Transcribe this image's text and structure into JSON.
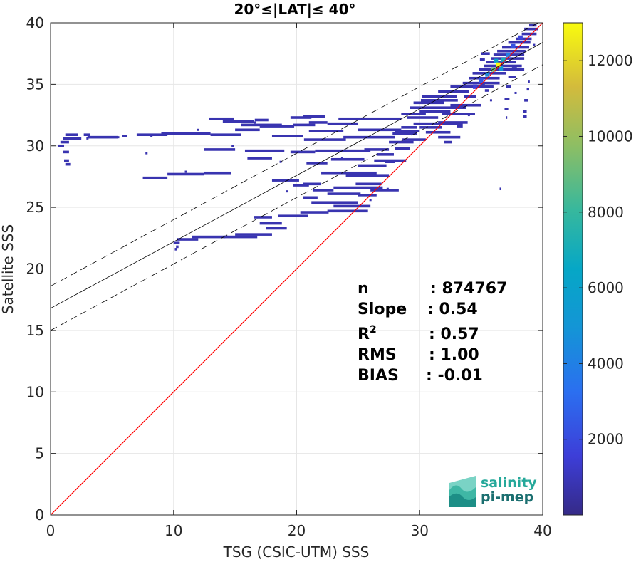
{
  "chart_data": {
    "type": "heatmap",
    "title": "20°≤|LAT|≤ 40°",
    "xlabel": "TSG (CSIC-UTM) SSS",
    "ylabel": "Satellite SSS",
    "xlim": [
      0,
      40
    ],
    "ylim": [
      0,
      40
    ],
    "xticks": [
      "0",
      "10",
      "20",
      "30",
      "40"
    ],
    "yticks": [
      "0",
      "5",
      "10",
      "15",
      "20",
      "25",
      "30",
      "35",
      "40"
    ],
    "grid": true,
    "colorbar": {
      "min": 1,
      "max": 13000,
      "ticks": [
        "2000",
        "4000",
        "6000",
        "8000",
        "10000",
        "12000"
      ],
      "colormap": "parula"
    },
    "lines": {
      "identity": {
        "slope": 1,
        "intercept": 0,
        "color": "#ff0000"
      },
      "fit": {
        "slope": 0.54,
        "intercept": 16.8,
        "color": "#000000"
      },
      "upper_bound": {
        "slope": 0.54,
        "intercept": 18.6,
        "style": "dashed"
      },
      "lower_bound": {
        "slope": 0.54,
        "intercept": 15.0,
        "style": "dashed"
      }
    },
    "stats": [
      {
        "label": "n",
        "value": ": 874767"
      },
      {
        "label": "Slope",
        "value": ": 0.54"
      },
      {
        "label": "R",
        "sup": "2",
        "value": ": 0.57"
      },
      {
        "label": "RMS",
        "value": ": 1.00"
      },
      {
        "label": "BIAS",
        "value": ": -0.01"
      }
    ],
    "density_segments": [
      [
        1.2,
        30.9,
        2.2
      ],
      [
        1.0,
        30.6,
        2.5
      ],
      [
        0.8,
        30.3,
        1.5
      ],
      [
        0.6,
        30.0,
        1.1
      ],
      [
        1.0,
        29.5,
        1.5
      ],
      [
        1.1,
        28.8,
        1.5
      ],
      [
        1.2,
        28.5,
        1.6
      ],
      [
        2.7,
        30.9,
        3.2
      ],
      [
        3.0,
        30.7,
        5.5
      ],
      [
        5.8,
        30.8,
        6.2
      ],
      [
        7.0,
        30.9,
        9.5
      ],
      [
        9.0,
        31.0,
        13.0
      ],
      [
        13.0,
        30.9,
        15.5
      ],
      [
        15.0,
        31.3,
        17.0
      ],
      [
        15.5,
        31.7,
        18.8
      ],
      [
        17.0,
        31.6,
        19.8
      ],
      [
        19.7,
        31.7,
        21.5
      ],
      [
        21.0,
        31.9,
        22.5
      ],
      [
        22.5,
        31.8,
        25.0
      ],
      [
        14.0,
        32.0,
        16.5
      ],
      [
        12.9,
        32.2,
        14.9
      ],
      [
        16.6,
        32.1,
        17.7
      ],
      [
        19.5,
        32.3,
        21.2
      ],
      [
        20.5,
        32.4,
        22.3
      ],
      [
        23.4,
        32.2,
        28.5
      ],
      [
        18.0,
        30.8,
        20.5
      ],
      [
        20.6,
        30.5,
        24.0
      ],
      [
        23.8,
        30.7,
        28.0
      ],
      [
        21.0,
        31.2,
        23.8
      ],
      [
        25.0,
        31.3,
        28.5
      ],
      [
        12.5,
        29.7,
        15.0
      ],
      [
        15.8,
        29.6,
        19.0
      ],
      [
        19.5,
        29.5,
        21.5
      ],
      [
        21.5,
        29.6,
        26.0
      ],
      [
        25.5,
        29.7,
        27.5
      ],
      [
        16.0,
        29.0,
        18.0
      ],
      [
        20.8,
        28.6,
        22.5
      ],
      [
        22.8,
        28.9,
        25.5
      ],
      [
        25.0,
        28.4,
        27.3
      ],
      [
        26.3,
        28.8,
        28.9
      ],
      [
        22.0,
        27.8,
        26.5
      ],
      [
        24.0,
        27.6,
        27.5
      ],
      [
        9.5,
        27.7,
        12.5
      ],
      [
        12.5,
        27.8,
        14.7
      ],
      [
        7.5,
        27.4,
        9.5
      ],
      [
        18.0,
        27.2,
        20.2
      ],
      [
        20.5,
        26.9,
        22.0
      ],
      [
        21.3,
        26.4,
        23.0
      ],
      [
        23.0,
        26.6,
        27.0
      ],
      [
        24.8,
        26.9,
        26.9
      ],
      [
        26.0,
        26.4,
        28.3
      ],
      [
        22.5,
        26.1,
        25.2
      ],
      [
        25.0,
        26.0,
        26.5
      ],
      [
        19.7,
        26.8,
        21.0
      ],
      [
        20.5,
        25.8,
        21.7
      ],
      [
        21.2,
        25.4,
        25.0
      ],
      [
        22.5,
        24.7,
        25.8
      ],
      [
        23.0,
        25.1,
        26.0
      ],
      [
        20.3,
        24.6,
        22.6
      ],
      [
        18.5,
        24.3,
        20.9
      ],
      [
        16.5,
        24.2,
        18.0
      ],
      [
        17.0,
        23.7,
        18.8
      ],
      [
        17.5,
        23.3,
        19.2
      ],
      [
        15.0,
        22.8,
        18.0
      ],
      [
        14.1,
        22.6,
        16.8
      ],
      [
        11.5,
        22.6,
        14.2
      ],
      [
        10.3,
        22.4,
        12.0
      ],
      [
        10.0,
        22.1,
        10.5
      ],
      [
        10.2,
        21.8,
        10.4
      ],
      [
        10.1,
        21.6,
        10.3
      ],
      [
        28.5,
        31.5,
        29.8
      ],
      [
        28.0,
        31.2,
        30.0
      ],
      [
        27.8,
        31.0,
        29.8
      ],
      [
        28.6,
        30.5,
        30.5
      ],
      [
        27.5,
        30.3,
        29.5
      ],
      [
        28.0,
        29.8,
        29.2
      ],
      [
        26.5,
        29.3,
        27.9
      ],
      [
        27.2,
        28.7,
        28.0
      ],
      [
        29.0,
        32.3,
        31.5
      ],
      [
        28.5,
        32.6,
        30.5
      ],
      [
        29.5,
        31.8,
        33.5
      ],
      [
        30.0,
        31.5,
        31.8
      ],
      [
        31.5,
        31.9,
        33.9
      ],
      [
        30.5,
        31.1,
        32.5
      ],
      [
        31.5,
        30.7,
        33.3
      ],
      [
        32.0,
        30.3,
        32.6
      ],
      [
        33.0,
        31.6,
        33.5
      ],
      [
        30.0,
        32.8,
        32.5
      ],
      [
        29.2,
        33.1,
        33.8
      ],
      [
        29.5,
        33.5,
        32.0
      ],
      [
        30.1,
        33.7,
        33.1
      ],
      [
        30.2,
        34.0,
        33.0
      ],
      [
        31.5,
        34.4,
        34.0
      ],
      [
        32.5,
        34.8,
        36.0
      ],
      [
        33.5,
        35.1,
        36.5
      ],
      [
        34.0,
        35.5,
        36.5
      ],
      [
        34.3,
        35.9,
        37.0
      ],
      [
        34.8,
        36.2,
        38.5
      ],
      [
        35.2,
        36.5,
        38.3
      ],
      [
        35.4,
        36.8,
        37.8
      ],
      [
        35.8,
        37.1,
        38.5
      ],
      [
        36.0,
        37.4,
        38.5
      ],
      [
        36.3,
        37.7,
        38.6
      ],
      [
        36.7,
        38.0,
        38.9
      ],
      [
        37.2,
        38.4,
        39.0
      ],
      [
        37.8,
        38.7,
        39.1
      ],
      [
        38.3,
        39.1,
        39.5
      ],
      [
        38.5,
        39.5,
        39.6
      ],
      [
        38.9,
        39.8,
        39.5
      ],
      [
        37.5,
        36.3,
        37.9
      ],
      [
        37.2,
        35.6,
        37.8
      ],
      [
        37.0,
        34.8,
        37.4
      ],
      [
        36.9,
        33.8,
        37.3
      ],
      [
        36.9,
        33.0,
        37.2
      ],
      [
        37.0,
        32.3,
        37.1
      ],
      [
        35.0,
        35.0,
        35.3
      ],
      [
        35.3,
        34.5,
        35.6
      ],
      [
        38.8,
        35.2,
        38.95
      ],
      [
        38.7,
        34.6,
        38.9
      ],
      [
        38.5,
        33.7,
        38.8
      ],
      [
        38.4,
        32.8,
        38.7
      ],
      [
        38.4,
        32.4,
        38.7
      ],
      [
        31.8,
        32.6,
        34.5
      ],
      [
        32.5,
        33.3,
        35.0
      ],
      [
        35.0,
        37.5,
        35.7
      ],
      [
        34.9,
        37.0,
        35.3
      ],
      [
        33.6,
        34.0,
        34.6
      ],
      [
        36.5,
        26.5,
        36.6
      ]
    ],
    "density_peaks": [
      [
        36.4,
        36.6,
        13000
      ],
      [
        36.0,
        36.2,
        9000
      ],
      [
        36.8,
        37.0,
        7000
      ],
      [
        35.5,
        35.8,
        4500
      ],
      [
        37.2,
        37.4,
        4000
      ],
      [
        35.0,
        35.3,
        2500
      ],
      [
        37.6,
        38.1,
        2200
      ],
      [
        38.2,
        38.8,
        1800
      ],
      [
        34.5,
        34.8,
        1500
      ],
      [
        36.2,
        36.9,
        6000
      ],
      [
        36.6,
        36.3,
        5000
      ]
    ],
    "density_dots": [
      [
        3.0,
        30.6
      ],
      [
        5.5,
        30.7
      ],
      [
        8.2,
        30.8
      ],
      [
        7.8,
        29.4
      ],
      [
        12.0,
        31.3
      ],
      [
        14.8,
        30.0
      ],
      [
        18.7,
        28.7
      ],
      [
        23.7,
        29.0
      ],
      [
        26.0,
        25.6
      ],
      [
        27.4,
        26.5
      ],
      [
        13.7,
        27.8
      ],
      [
        11.0,
        27.9
      ],
      [
        19.2,
        26.3
      ],
      [
        16.6,
        31.9
      ],
      [
        29.5,
        31.1
      ],
      [
        35.8,
        33.7
      ],
      [
        34.0,
        32.5
      ],
      [
        37.8,
        34.3
      ],
      [
        39.3,
        38.2
      ]
    ],
    "logo": {
      "line1": "salinity",
      "line2": "pi-mep"
    }
  }
}
